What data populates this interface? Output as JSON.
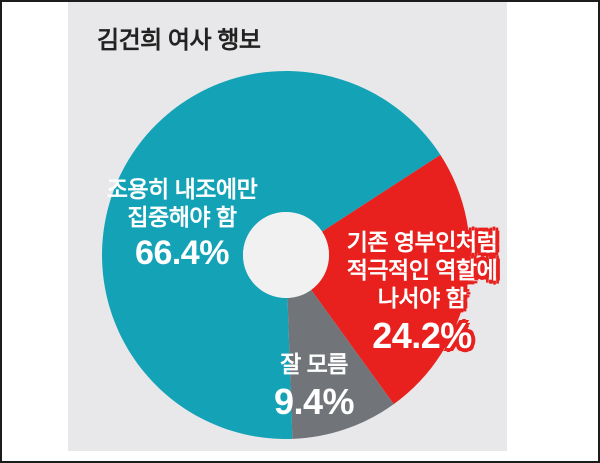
{
  "title": "김건희 여사 행보",
  "colors": {
    "teal": "#14a3b6",
    "red": "#e8201e",
    "gray": "#717579",
    "panel_bg": "#e8e8ea",
    "hole": "#f1f1f1",
    "frame": "#1c1c1c",
    "title_text": "#222222",
    "label_text": "#ffffff"
  },
  "chart_data": {
    "type": "pie",
    "donut": true,
    "title": "김건희 여사 행보",
    "unit": "%",
    "start_angle_deg": -88,
    "direction": "clockwise",
    "slices": [
      {
        "label": "조용히 내조에만 집중해야 함",
        "value": 66.4,
        "color": "#14a3b6"
      },
      {
        "label": "기존 영부인처럼 적극적인 역할에 나서야 함",
        "value": 24.2,
        "color": "#e8201e"
      },
      {
        "label": "잘 모름",
        "value": 9.4,
        "color": "#717579"
      }
    ]
  },
  "labels": {
    "teal": {
      "line1": "조용히 내조에만",
      "line2": "집중해야 함",
      "pct": "66.4%"
    },
    "red": {
      "line1": "기존 영부인처럼",
      "line2": "적극적인 역할에",
      "line3": "나서야 함",
      "pct": "24.2%"
    },
    "gray": {
      "line1": "잘 모름",
      "pct": "9.4%"
    }
  }
}
